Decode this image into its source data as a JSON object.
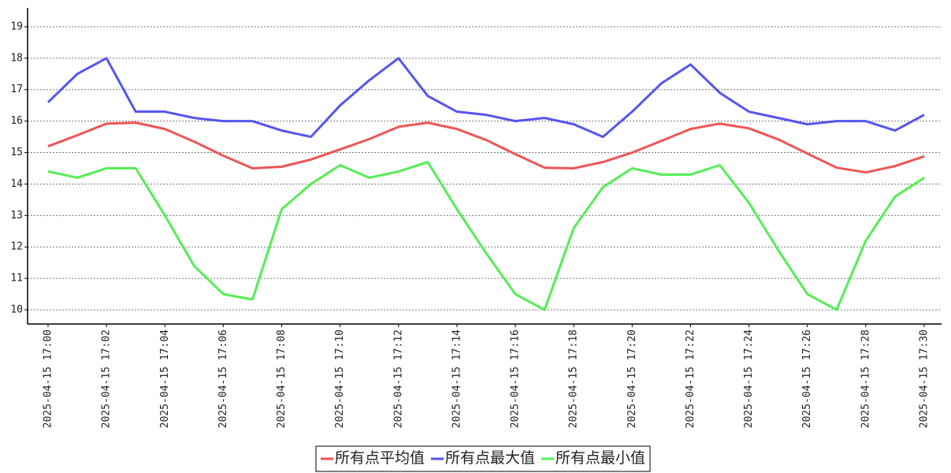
{
  "chart_data": {
    "type": "line",
    "categories": [
      "2025-04-15 17:00",
      null,
      "2025-04-15 17:02",
      null,
      "2025-04-15 17:04",
      null,
      "2025-04-15 17:06",
      null,
      "2025-04-15 17:08",
      null,
      "2025-04-15 17:10",
      null,
      "2025-04-15 17:12",
      null,
      "2025-04-15 17:14",
      null,
      "2025-04-15 17:16",
      null,
      "2025-04-15 17:18",
      null,
      "2025-04-15 17:20",
      null,
      "2025-04-15 17:22",
      null,
      "2025-04-15 17:24",
      null,
      "2025-04-15 17:26",
      null,
      "2025-04-15 17:28",
      null,
      "2025-04-15 17:30"
    ],
    "series": [
      {
        "name": "所有点平均值",
        "color": "#ee5555",
        "values": [
          15.2,
          15.55,
          15.92,
          15.95,
          15.75,
          15.35,
          14.9,
          14.5,
          14.55,
          14.78,
          15.1,
          15.43,
          15.82,
          15.95,
          15.75,
          15.4,
          14.95,
          14.52,
          14.5,
          14.7,
          15.0,
          15.37,
          15.75,
          15.92,
          15.77,
          15.42,
          14.97,
          14.52,
          14.37,
          14.57,
          14.88
        ]
      },
      {
        "name": "所有点最大值",
        "color": "#5555ee",
        "values": [
          16.6,
          17.5,
          18.0,
          16.3,
          16.3,
          16.1,
          16.0,
          16.0,
          15.7,
          15.5,
          16.5,
          17.3,
          18.0,
          16.8,
          16.3,
          16.2,
          16.0,
          16.1,
          15.9,
          15.5,
          16.3,
          17.2,
          17.8,
          16.9,
          16.3,
          16.1,
          15.9,
          16.0,
          16.0,
          15.7,
          16.2
        ]
      },
      {
        "name": "所有点最小值",
        "color": "#55ee55",
        "values": [
          14.4,
          14.2,
          14.5,
          14.5,
          13.0,
          11.4,
          10.5,
          10.33,
          13.2,
          14.0,
          14.6,
          14.2,
          14.4,
          14.7,
          13.2,
          11.8,
          10.5,
          10.0,
          12.6,
          13.9,
          14.5,
          14.3,
          14.3,
          14.6,
          13.4,
          11.9,
          10.5,
          10.0,
          12.2,
          13.6,
          14.2
        ]
      }
    ],
    "ylim": [
      9.55,
      19.6
    ],
    "yticks": [
      10,
      11,
      12,
      13,
      14,
      15,
      16,
      17,
      18,
      19
    ],
    "grid": true,
    "legend": "bottom"
  }
}
